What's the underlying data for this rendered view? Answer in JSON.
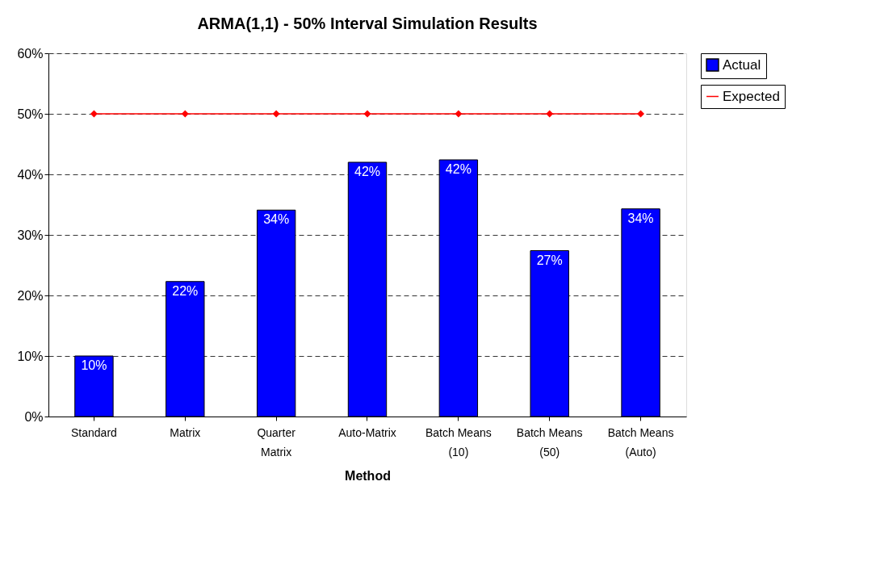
{
  "chart_data": {
    "type": "bar",
    "title": "ARMA(1,1) - 50% Interval Simulation Results",
    "xlabel": "Method",
    "categories": [
      "Standard",
      "Matrix",
      "Quarter Matrix",
      "Auto-Matrix",
      "Batch Means (10)",
      "Batch Means (50)",
      "Batch Means (Auto)"
    ],
    "series": [
      {
        "name": "Actual",
        "color": "#0000ff",
        "values": [
          10,
          22.3,
          34.1,
          42,
          42.4,
          27.4,
          34.3
        ],
        "value_labels": [
          "10%",
          "22%",
          "34%",
          "42%",
          "42%",
          "27%",
          "34%"
        ]
      },
      {
        "name": "Expected",
        "type": "line",
        "color": "#ff0000",
        "marker": "diamond",
        "values": [
          50,
          50,
          50,
          50,
          50,
          50,
          50
        ]
      }
    ],
    "ylim": [
      0,
      60
    ],
    "yticks": [
      {
        "value": 0,
        "label": "0%"
      },
      {
        "value": 10,
        "label": "10%"
      },
      {
        "value": 20,
        "label": "20%"
      },
      {
        "value": 30,
        "label": "30%"
      },
      {
        "value": 40,
        "label": "40%"
      },
      {
        "value": 50,
        "label": "50%"
      },
      {
        "value": 60,
        "label": "60%"
      }
    ],
    "grid": "y",
    "legend": "right"
  }
}
